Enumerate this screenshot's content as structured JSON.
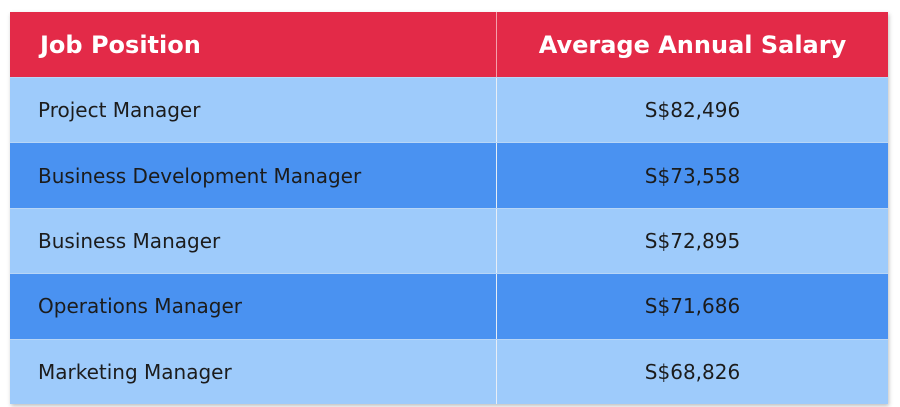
{
  "table": {
    "header": [
      "Job Position",
      "Average Annual Salary"
    ],
    "rows": [
      [
        "Project Manager",
        "S$82,496"
      ],
      [
        "Business Development Manager",
        "S$73,558"
      ],
      [
        "Business Manager",
        "S$72,895"
      ],
      [
        "Operations Manager",
        "S$71,686"
      ],
      [
        "Marketing Manager",
        "S$68,826"
      ]
    ]
  }
}
